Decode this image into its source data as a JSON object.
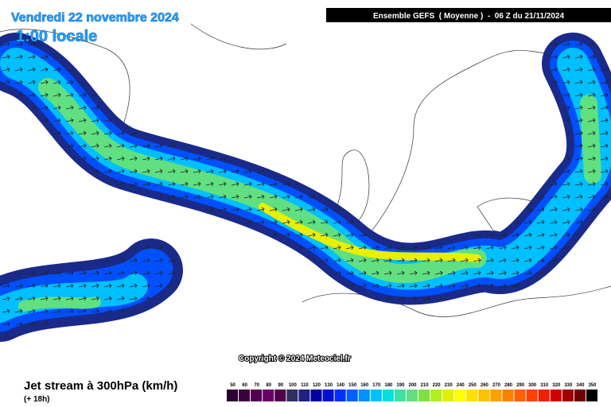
{
  "header": {
    "date": "Vendredi 22 novembre 2024",
    "time": "1:00 locale",
    "model": "Ensemble GEFS  ( Moyenne )  -  06 Z du 21/11/2024"
  },
  "copyright": "Copyright © 2024 Meteociel.fr",
  "footer": {
    "title": "Jet stream à 300hPa (km/h)",
    "lead": "(+ 18h)"
  },
  "legend": {
    "labels": [
      50,
      60,
      70,
      80,
      90,
      100,
      110,
      120,
      130,
      140,
      150,
      160,
      170,
      180,
      190,
      200,
      210,
      220,
      230,
      240,
      250,
      260,
      270,
      280,
      290,
      300,
      310,
      320,
      330,
      340,
      350
    ],
    "colors": [
      "#2a0030",
      "#3c003c",
      "#520052",
      "#680068",
      "#500048",
      "#303060",
      "#202080",
      "#0000a0",
      "#0010d0",
      "#0030ff",
      "#0060ff",
      "#0090ff",
      "#00c0ff",
      "#00e0e0",
      "#40e0a0",
      "#60e080",
      "#80e040",
      "#b0f020",
      "#e0f000",
      "#ffff00",
      "#ffe000",
      "#ffc000",
      "#ffa000",
      "#ff8000",
      "#ff6000",
      "#ff4000",
      "#f02000",
      "#d00000",
      "#a00000",
      "#700000",
      "#000000"
    ]
  }
}
